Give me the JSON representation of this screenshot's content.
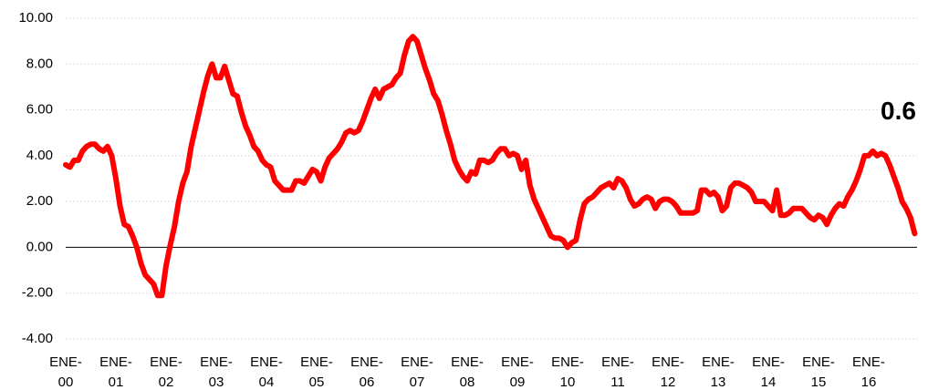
{
  "chart_data": {
    "type": "line",
    "annotation": "0.6",
    "color": "#ff0000",
    "categories": [
      "ENE-\n00",
      null,
      null,
      null,
      null,
      null,
      null,
      null,
      null,
      null,
      null,
      null,
      "ENE-\n01",
      null,
      null,
      null,
      null,
      null,
      null,
      null,
      null,
      null,
      null,
      null,
      "ENE-\n02",
      null,
      null,
      null,
      null,
      null,
      null,
      null,
      null,
      null,
      null,
      null,
      "ENE-\n03",
      null,
      null,
      null,
      null,
      null,
      null,
      null,
      null,
      null,
      null,
      null,
      "ENE-\n04",
      null,
      null,
      null,
      null,
      null,
      null,
      null,
      null,
      null,
      null,
      null,
      "ENE-\n05",
      null,
      null,
      null,
      null,
      null,
      null,
      null,
      null,
      null,
      null,
      null,
      "ENE-\n06",
      null,
      null,
      null,
      null,
      null,
      null,
      null,
      null,
      null,
      null,
      null,
      "ENE-\n07",
      null,
      null,
      null,
      null,
      null,
      null,
      null,
      null,
      null,
      null,
      null,
      "ENE-\n08",
      null,
      null,
      null,
      null,
      null,
      null,
      null,
      null,
      null,
      null,
      null,
      "ENE-\n09",
      null,
      null,
      null,
      null,
      null,
      null,
      null,
      null,
      null,
      null,
      null,
      "ENE-\n10",
      null,
      null,
      null,
      null,
      null,
      null,
      null,
      null,
      null,
      null,
      null,
      "ENE-\n11",
      null,
      null,
      null,
      null,
      null,
      null,
      null,
      null,
      null,
      null,
      null,
      "ENE-\n12",
      null,
      null,
      null,
      null,
      null,
      null,
      null,
      null,
      null,
      null,
      null,
      "ENE-\n13",
      null,
      null,
      null,
      null,
      null,
      null,
      null,
      null,
      null,
      null,
      null,
      "ENE-\n14",
      null,
      null,
      null,
      null,
      null,
      null,
      null,
      null,
      null,
      null,
      null,
      "ENE-\n15",
      null,
      null,
      null,
      null,
      null,
      null,
      null,
      null,
      null,
      null,
      null,
      "ENE-\n16",
      null,
      null,
      null,
      null,
      null,
      null,
      null,
      null,
      null,
      null,
      null
    ],
    "values": [
      3.6,
      3.5,
      3.8,
      3.8,
      4.2,
      4.4,
      4.5,
      4.5,
      4.3,
      4.2,
      4.4,
      4.0,
      3.0,
      1.8,
      1.0,
      0.9,
      0.5,
      0.0,
      -0.7,
      -1.2,
      -1.4,
      -1.6,
      -2.1,
      -2.1,
      -0.8,
      0.1,
      0.9,
      2.0,
      2.8,
      3.3,
      4.4,
      5.2,
      6.0,
      6.8,
      7.5,
      8.0,
      7.4,
      7.4,
      7.9,
      7.3,
      6.7,
      6.6,
      5.9,
      5.3,
      4.9,
      4.4,
      4.2,
      3.8,
      3.6,
      3.5,
      2.9,
      2.7,
      2.5,
      2.5,
      2.5,
      2.9,
      2.9,
      2.8,
      3.1,
      3.4,
      3.3,
      2.9,
      3.5,
      3.9,
      4.1,
      4.3,
      4.6,
      5.0,
      5.1,
      5.0,
      5.1,
      5.5,
      6.0,
      6.5,
      6.9,
      6.5,
      6.9,
      7.0,
      7.1,
      7.4,
      7.6,
      8.4,
      9.0,
      9.2,
      9.0,
      8.4,
      7.8,
      7.3,
      6.7,
      6.4,
      5.8,
      5.1,
      4.5,
      3.8,
      3.4,
      3.1,
      2.9,
      3.3,
      3.2,
      3.8,
      3.8,
      3.7,
      3.8,
      4.1,
      4.3,
      4.3,
      4.0,
      4.1,
      4.0,
      3.4,
      3.8,
      2.7,
      2.1,
      1.7,
      1.3,
      0.9,
      0.5,
      0.4,
      0.4,
      0.3,
      0.0,
      0.2,
      0.3,
      1.2,
      1.9,
      2.1,
      2.2,
      2.4,
      2.6,
      2.7,
      2.8,
      2.6,
      3.0,
      2.9,
      2.6,
      2.1,
      1.8,
      1.9,
      2.1,
      2.2,
      2.1,
      1.7,
      2.0,
      2.1,
      2.1,
      2.0,
      1.8,
      1.5,
      1.5,
      1.5,
      1.5,
      1.6,
      2.5,
      2.5,
      2.3,
      2.4,
      2.2,
      1.6,
      1.8,
      2.6,
      2.8,
      2.8,
      2.7,
      2.6,
      2.4,
      2.0,
      2.0,
      2.0,
      1.8,
      1.6,
      2.5,
      1.4,
      1.4,
      1.5,
      1.7,
      1.7,
      1.7,
      1.5,
      1.3,
      1.2,
      1.4,
      1.3,
      1.0,
      1.4,
      1.7,
      1.9,
      1.8,
      2.2,
      2.5,
      2.9,
      3.4,
      4.0,
      4.0,
      4.2,
      4.0,
      4.1,
      4.0,
      3.6,
      3.1,
      2.6,
      2.0,
      1.7,
      1.3,
      0.6
    ],
    "ylim": [
      -4,
      10
    ],
    "yticks": [
      {
        "value": -4,
        "label": "-4.00"
      },
      {
        "value": -2,
        "label": "-2.00"
      },
      {
        "value": 0,
        "label": "0.00"
      },
      {
        "value": 2,
        "label": "2.00"
      },
      {
        "value": 4,
        "label": "4.00"
      },
      {
        "value": 6,
        "label": "6.00"
      },
      {
        "value": 8,
        "label": "8.00"
      },
      {
        "value": 10,
        "label": "10.00"
      }
    ],
    "grid": true
  }
}
